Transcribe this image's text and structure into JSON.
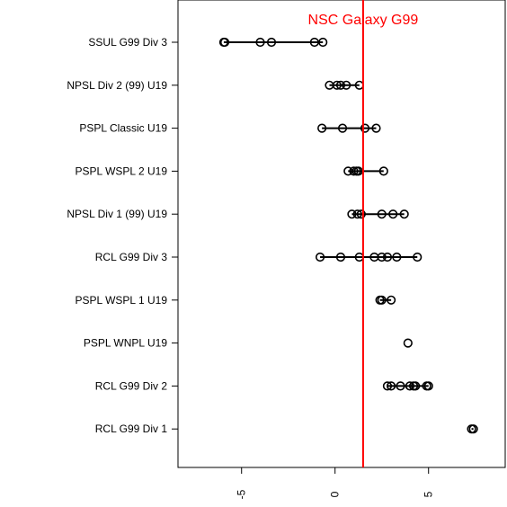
{
  "chart_data": {
    "type": "scatter",
    "title": "",
    "xlabel": "",
    "ylabel": "",
    "xlim": [
      -8.4,
      9.1
    ],
    "x_ticks": [
      -5,
      0,
      5
    ],
    "x_tick_labels": [
      "-5",
      "0",
      "5"
    ],
    "grid": false,
    "reference_line": {
      "x": 1.5,
      "label": "NSC Galaxy G99",
      "color": "#ff0000"
    },
    "series": [
      {
        "category": "SSUL G99 Div 3",
        "values": [
          -5.9,
          -5.95,
          -4.0,
          -3.4,
          -1.1,
          -0.65
        ]
      },
      {
        "category": "NPSL Div 2 (99) U19",
        "values": [
          -0.3,
          0.1,
          0.3,
          0.6,
          1.3
        ]
      },
      {
        "category": "PSPL Classic U19",
        "values": [
          -0.7,
          0.4,
          1.6,
          2.2
        ]
      },
      {
        "category": "PSPL WSPL 2 U19",
        "values": [
          0.7,
          1.0,
          1.15,
          1.25,
          2.6
        ]
      },
      {
        "category": "NPSL Div 1 (99) U19",
        "values": [
          0.9,
          1.2,
          1.4,
          2.5,
          3.1,
          3.7
        ]
      },
      {
        "category": "RCL G99 Div 3",
        "values": [
          -0.8,
          0.3,
          1.3,
          2.1,
          2.5,
          2.8,
          3.3,
          4.4
        ]
      },
      {
        "category": "PSPL WSPL 1 U19",
        "values": [
          2.4,
          2.5,
          3.0
        ]
      },
      {
        "category": "PSPL WNPL U19",
        "values": [
          3.9
        ]
      },
      {
        "category": "RCL G99 Div 2",
        "values": [
          2.8,
          3.0,
          3.5,
          4.0,
          4.2,
          4.3,
          4.9,
          5.0
        ]
      },
      {
        "category": "RCL G99 Div 1",
        "values": [
          7.3,
          7.4
        ]
      }
    ],
    "colors": {
      "points": "#000000",
      "reference": "#ff0000",
      "axis": "#000000"
    }
  }
}
